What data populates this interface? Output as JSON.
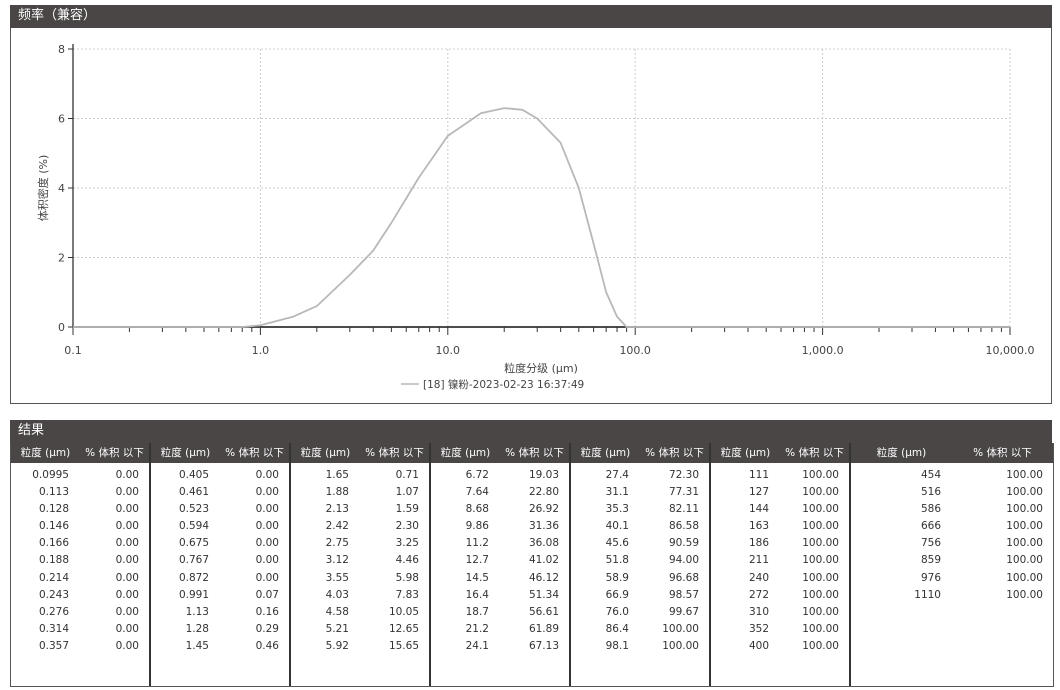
{
  "chart_section": {
    "title": "频率（兼容）"
  },
  "chart_data": {
    "type": "line",
    "xlabel": "粒度分级 (µm)",
    "ylabel": "体积密度 (%)",
    "x_scale": "log",
    "xlim": [
      0.1,
      10000
    ],
    "ylim": [
      0,
      8
    ],
    "x_ticks": [
      "0.1",
      "1.0",
      "10.0",
      "100.0",
      "1,000.0",
      "10,000.0"
    ],
    "y_ticks": [
      "0",
      "2",
      "4",
      "6",
      "8"
    ],
    "grid": true,
    "legend_position": "bottom-center",
    "series": [
      {
        "name": "[18] 镍粉-2023-02-23 16:37:49",
        "color": "#b8b8b8",
        "x": [
          0.1,
          0.8,
          1.0,
          1.5,
          2.0,
          3.0,
          4.0,
          5.0,
          7.0,
          10,
          15,
          20,
          25,
          30,
          40,
          50,
          60,
          70,
          80,
          90,
          10000
        ],
        "y": [
          0,
          0,
          0.05,
          0.3,
          0.6,
          1.5,
          2.2,
          3.0,
          4.3,
          5.5,
          6.15,
          6.3,
          6.25,
          6.0,
          5.3,
          4.0,
          2.4,
          1.0,
          0.3,
          0,
          0
        ]
      }
    ]
  },
  "results": {
    "title": "结果",
    "col_size": "粒度 (µm)",
    "col_pct": "% 体积 以下",
    "groups": [
      [
        [
          "0.0995",
          "0.00"
        ],
        [
          "0.113",
          "0.00"
        ],
        [
          "0.128",
          "0.00"
        ],
        [
          "0.146",
          "0.00"
        ],
        [
          "0.166",
          "0.00"
        ],
        [
          "0.188",
          "0.00"
        ],
        [
          "0.214",
          "0.00"
        ],
        [
          "0.243",
          "0.00"
        ],
        [
          "0.276",
          "0.00"
        ],
        [
          "0.314",
          "0.00"
        ],
        [
          "0.357",
          "0.00"
        ]
      ],
      [
        [
          "0.405",
          "0.00"
        ],
        [
          "0.461",
          "0.00"
        ],
        [
          "0.523",
          "0.00"
        ],
        [
          "0.594",
          "0.00"
        ],
        [
          "0.675",
          "0.00"
        ],
        [
          "0.767",
          "0.00"
        ],
        [
          "0.872",
          "0.00"
        ],
        [
          "0.991",
          "0.07"
        ],
        [
          "1.13",
          "0.16"
        ],
        [
          "1.28",
          "0.29"
        ],
        [
          "1.45",
          "0.46"
        ]
      ],
      [
        [
          "1.65",
          "0.71"
        ],
        [
          "1.88",
          "1.07"
        ],
        [
          "2.13",
          "1.59"
        ],
        [
          "2.42",
          "2.30"
        ],
        [
          "2.75",
          "3.25"
        ],
        [
          "3.12",
          "4.46"
        ],
        [
          "3.55",
          "5.98"
        ],
        [
          "4.03",
          "7.83"
        ],
        [
          "4.58",
          "10.05"
        ],
        [
          "5.21",
          "12.65"
        ],
        [
          "5.92",
          "15.65"
        ]
      ],
      [
        [
          "6.72",
          "19.03"
        ],
        [
          "7.64",
          "22.80"
        ],
        [
          "8.68",
          "26.92"
        ],
        [
          "9.86",
          "31.36"
        ],
        [
          "11.2",
          "36.08"
        ],
        [
          "12.7",
          "41.02"
        ],
        [
          "14.5",
          "46.12"
        ],
        [
          "16.4",
          "51.34"
        ],
        [
          "18.7",
          "56.61"
        ],
        [
          "21.2",
          "61.89"
        ],
        [
          "24.1",
          "67.13"
        ]
      ],
      [
        [
          "27.4",
          "72.30"
        ],
        [
          "31.1",
          "77.31"
        ],
        [
          "35.3",
          "82.11"
        ],
        [
          "40.1",
          "86.58"
        ],
        [
          "45.6",
          "90.59"
        ],
        [
          "51.8",
          "94.00"
        ],
        [
          "58.9",
          "96.68"
        ],
        [
          "66.9",
          "98.57"
        ],
        [
          "76.0",
          "99.67"
        ],
        [
          "86.4",
          "100.00"
        ],
        [
          "98.1",
          "100.00"
        ]
      ],
      [
        [
          "111",
          "100.00"
        ],
        [
          "127",
          "100.00"
        ],
        [
          "144",
          "100.00"
        ],
        [
          "163",
          "100.00"
        ],
        [
          "186",
          "100.00"
        ],
        [
          "211",
          "100.00"
        ],
        [
          "240",
          "100.00"
        ],
        [
          "272",
          "100.00"
        ],
        [
          "310",
          "100.00"
        ],
        [
          "352",
          "100.00"
        ],
        [
          "400",
          "100.00"
        ]
      ],
      [
        [
          "454",
          "100.00"
        ],
        [
          "516",
          "100.00"
        ],
        [
          "586",
          "100.00"
        ],
        [
          "666",
          "100.00"
        ],
        [
          "756",
          "100.00"
        ],
        [
          "859",
          "100.00"
        ],
        [
          "976",
          "100.00"
        ],
        [
          "1110",
          "100.00"
        ]
      ]
    ]
  }
}
